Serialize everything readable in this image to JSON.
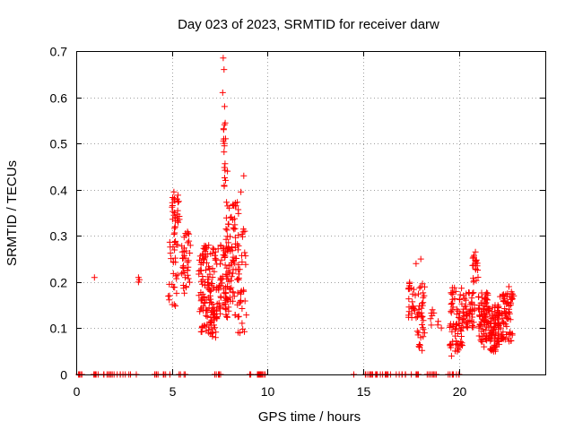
{
  "chart_data": {
    "type": "scatter",
    "title": "Day 023 of 2023, SRMTID for receiver darw",
    "xlabel": "GPS time / hours",
    "ylabel": "SRMTID / TECUs",
    "xlim": [
      0,
      24.5
    ],
    "ylim": [
      0,
      0.7
    ],
    "xticks": [
      0,
      5,
      10,
      15,
      20
    ],
    "xtick_labels": [
      "0",
      "5",
      "10",
      "15",
      "20"
    ],
    "yticks": [
      0,
      0.1,
      0.2,
      0.3,
      0.4,
      0.5,
      0.6,
      0.7
    ],
    "ytick_labels": [
      "0",
      "0.1",
      "0.2",
      "0.3",
      "0.4",
      "0.5",
      "0.6",
      "0.7"
    ],
    "grid": true,
    "marker": "+",
    "color": "#ff0000",
    "series": [
      {
        "name": "SRMTID",
        "clusters": [
          {
            "x": [
              0.1,
              0.3
            ],
            "y": [
              0,
              0
            ],
            "n": 6
          },
          {
            "x": [
              0.7,
              1.4
            ],
            "y": [
              0,
              0
            ],
            "n": 8
          },
          {
            "x": [
              1.4,
              3.3
            ],
            "y": [
              0,
              0
            ],
            "n": 18
          },
          {
            "x": [
              3.9,
              4.9
            ],
            "y": [
              0,
              0
            ],
            "n": 10
          },
          {
            "x": [
              5.3,
              5.7
            ],
            "y": [
              0,
              0
            ],
            "n": 4
          },
          {
            "x": [
              6.8,
              7.6
            ],
            "y": [
              0,
              0
            ],
            "n": 6
          },
          {
            "x": [
              8.9,
              9.9
            ],
            "y": [
              0,
              0
            ],
            "n": 14
          },
          {
            "x": [
              14.5,
              14.5
            ],
            "y": [
              0,
              0
            ],
            "n": 1
          },
          {
            "x": [
              15.1,
              17.9
            ],
            "y": [
              0,
              0
            ],
            "n": 32
          },
          {
            "x": [
              18.3,
              19.0
            ],
            "y": [
              0,
              0
            ],
            "n": 8
          },
          {
            "x": [
              19.4,
              20.2
            ],
            "y": [
              0,
              0
            ],
            "n": 10
          },
          {
            "x": [
              4.8,
              5.3
            ],
            "y": [
              0.14,
              0.32
            ],
            "n": 34
          },
          {
            "x": [
              5.0,
              5.4
            ],
            "y": [
              0.32,
              0.39
            ],
            "n": 24
          },
          {
            "x": [
              5.5,
              6.0
            ],
            "y": [
              0.13,
              0.31
            ],
            "n": 40
          },
          {
            "x": [
              6.4,
              7.3
            ],
            "y": [
              0.08,
              0.28
            ],
            "n": 130
          },
          {
            "x": [
              7.3,
              7.9
            ],
            "y": [
              0.12,
              0.28
            ],
            "n": 60
          },
          {
            "x": [
              7.6,
              7.8
            ],
            "y": [
              0.4,
              0.55
            ],
            "n": 14
          },
          {
            "x": [
              7.8,
              8.5
            ],
            "y": [
              0.12,
              0.38
            ],
            "n": 90
          },
          {
            "x": [
              8.4,
              8.9
            ],
            "y": [
              0.09,
              0.33
            ],
            "n": 30
          },
          {
            "x": [
              17.3,
              17.8
            ],
            "y": [
              0.12,
              0.2
            ],
            "n": 24
          },
          {
            "x": [
              17.8,
              18.2
            ],
            "y": [
              0.05,
              0.2
            ],
            "n": 36
          },
          {
            "x": [
              18.5,
              19.1
            ],
            "y": [
              0.1,
              0.14
            ],
            "n": 8
          },
          {
            "x": [
              19.5,
              20.2
            ],
            "y": [
              0.05,
              0.19
            ],
            "n": 70
          },
          {
            "x": [
              20.2,
              20.8
            ],
            "y": [
              0.1,
              0.18
            ],
            "n": 50
          },
          {
            "x": [
              20.7,
              21.0
            ],
            "y": [
              0.2,
              0.26
            ],
            "n": 20
          },
          {
            "x": [
              21.0,
              21.6
            ],
            "y": [
              0.07,
              0.18
            ],
            "n": 80
          },
          {
            "x": [
              21.6,
              22.1
            ],
            "y": [
              0.05,
              0.15
            ],
            "n": 80
          },
          {
            "x": [
              22.1,
              22.8
            ],
            "y": [
              0.07,
              0.18
            ],
            "n": 70
          }
        ],
        "points": [
          [
            0.95,
            0.21
          ],
          [
            3.25,
            0.2
          ],
          [
            3.25,
            0.21
          ],
          [
            3.3,
            0.205
          ],
          [
            7.68,
            0.685
          ],
          [
            7.72,
            0.66
          ],
          [
            7.65,
            0.61
          ],
          [
            7.75,
            0.58
          ],
          [
            7.7,
            0.53
          ],
          [
            7.73,
            0.5
          ],
          [
            7.8,
            0.42
          ],
          [
            7.9,
            0.44
          ],
          [
            8.75,
            0.43
          ],
          [
            8.6,
            0.395
          ],
          [
            5.1,
            0.395
          ],
          [
            7.28,
            0.08
          ],
          [
            8.55,
            0.09
          ],
          [
            8.8,
            0.31
          ],
          [
            17.35,
            0.185
          ],
          [
            17.75,
            0.24
          ],
          [
            18.0,
            0.25
          ],
          [
            18.0,
            0.19
          ],
          [
            18.6,
            0.14
          ],
          [
            19.6,
            0.04
          ],
          [
            21.3,
            0.06
          ],
          [
            21.8,
            0.05
          ],
          [
            22.6,
            0.19
          ],
          [
            22.85,
            0.17
          ],
          [
            20.85,
            0.265
          ]
        ]
      }
    ]
  }
}
